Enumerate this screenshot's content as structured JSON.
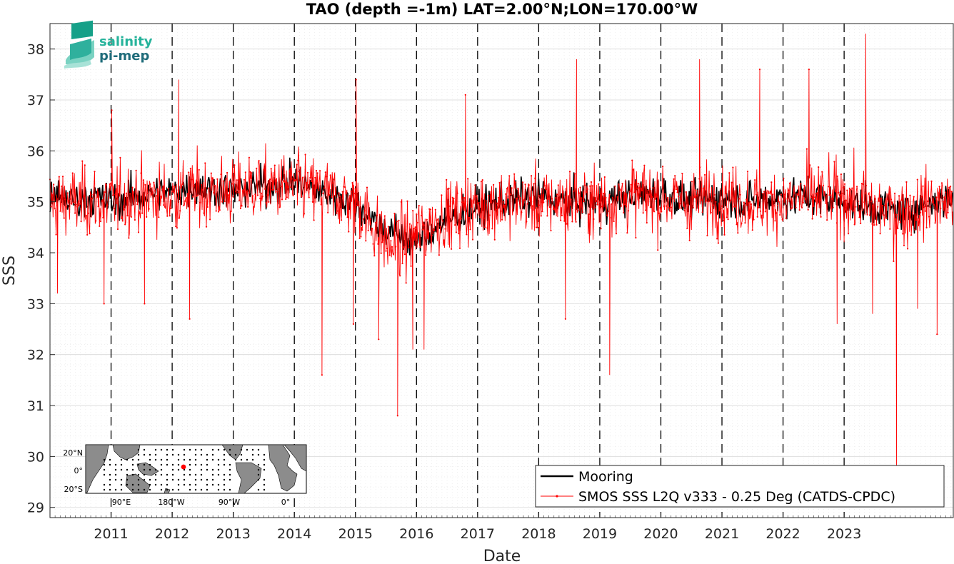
{
  "chart_data": {
    "type": "line",
    "title": "TAO (depth =-1m) LAT=2.00°N;LON=170.00°W",
    "xlabel": "Date",
    "ylabel": "SSS",
    "xlim": [
      "2010-01-01",
      "2024-10-15"
    ],
    "ylim": [
      28.8,
      38.5
    ],
    "x_ticks": [
      "2011",
      "2012",
      "2013",
      "2014",
      "2015",
      "2016",
      "2017",
      "2018",
      "2019",
      "2020",
      "2021",
      "2022",
      "2023"
    ],
    "y_ticks": [
      29,
      30,
      31,
      32,
      33,
      34,
      35,
      36,
      37,
      38
    ],
    "grid": true,
    "year_separators": true,
    "legend_position": "bottom-right",
    "series": [
      {
        "name": "Mooring",
        "color": "#000000",
        "x": [
          "2010-01-01",
          "2010-03-01",
          "2010-06-01",
          "2010-09-01",
          "2011-01-01",
          "2011-06-01",
          "2012-01-01",
          "2012-06-01",
          "2013-01-01",
          "2013-06-01",
          "2014-01-01",
          "2014-06-01",
          "2015-01-01",
          "2015-06-01",
          "2016-01-01",
          "2016-06-01",
          "2017-01-01",
          "2017-06-01",
          "2018-01-01",
          "2018-06-01",
          "2019-01-01",
          "2019-06-01",
          "2020-01-01",
          "2020-06-01",
          "2021-01-01",
          "2021-06-01",
          "2022-01-01",
          "2022-06-01",
          "2023-01-01",
          "2023-06-01",
          "2024-01-01",
          "2024-06-01",
          "2024-10-01"
        ],
        "values": [
          35.0,
          35.1,
          35.0,
          35.1,
          35.0,
          35.1,
          35.2,
          35.3,
          35.2,
          35.3,
          35.4,
          35.2,
          35.0,
          34.5,
          34.2,
          34.6,
          34.9,
          35.0,
          35.1,
          35.0,
          35.0,
          35.1,
          35.2,
          35.0,
          35.1,
          35.0,
          35.1,
          35.1,
          35.0,
          34.9,
          34.8,
          35.0,
          35.1
        ]
      },
      {
        "name": "SMOS SSS L2Q v333 - 0.25 Deg (CATDS-CPDC)",
        "color": "#ff0000",
        "baseline": {
          "x": [
            "2010-01-01",
            "2010-06-01",
            "2011-01-01",
            "2011-06-01",
            "2012-01-01",
            "2012-06-01",
            "2013-01-01",
            "2013-06-01",
            "2014-01-01",
            "2014-06-01",
            "2015-01-01",
            "2015-04-01",
            "2015-08-01",
            "2015-12-01",
            "2016-06-01",
            "2017-01-01",
            "2017-06-01",
            "2018-01-01",
            "2018-06-01",
            "2019-01-01",
            "2019-06-01",
            "2020-01-01",
            "2020-06-01",
            "2021-01-01",
            "2021-06-01",
            "2022-01-01",
            "2022-06-01",
            "2023-01-01",
            "2023-06-01",
            "2024-01-01",
            "2024-06-01",
            "2024-10-15"
          ],
          "values": [
            35.0,
            35.0,
            35.0,
            35.1,
            35.1,
            35.2,
            35.2,
            35.3,
            35.3,
            35.2,
            35.0,
            34.6,
            34.1,
            34.3,
            34.7,
            34.9,
            35.0,
            35.0,
            35.0,
            35.0,
            35.1,
            35.1,
            35.0,
            35.1,
            35.0,
            35.0,
            35.1,
            35.1,
            34.9,
            34.8,
            35.0,
            35.0
          ]
        },
        "noise_std": 0.55,
        "extremes": [
          {
            "x": "2010-02-15",
            "value": 33.2
          },
          {
            "x": "2010-11-20",
            "value": 33.0
          },
          {
            "x": "2011-01-05",
            "value": 36.8
          },
          {
            "x": "2011-07-20",
            "value": 33.0
          },
          {
            "x": "2012-02-10",
            "value": 37.4
          },
          {
            "x": "2012-04-15",
            "value": 32.7
          },
          {
            "x": "2014-06-15",
            "value": 31.6
          },
          {
            "x": "2014-12-20",
            "value": 32.6
          },
          {
            "x": "2015-01-05",
            "value": 37.4
          },
          {
            "x": "2015-05-20",
            "value": 32.3
          },
          {
            "x": "2015-09-10",
            "value": 30.8
          },
          {
            "x": "2015-12-10",
            "value": 32.1
          },
          {
            "x": "2016-02-15",
            "value": 32.1
          },
          {
            "x": "2016-10-20",
            "value": 37.1
          },
          {
            "x": "2018-06-10",
            "value": 32.7
          },
          {
            "x": "2018-08-15",
            "value": 37.8
          },
          {
            "x": "2019-03-01",
            "value": 31.6
          },
          {
            "x": "2020-08-20",
            "value": 37.8
          },
          {
            "x": "2021-08-15",
            "value": 37.6
          },
          {
            "x": "2022-06-05",
            "value": 37.6
          },
          {
            "x": "2022-11-20",
            "value": 32.6
          },
          {
            "x": "2023-05-10",
            "value": 38.3
          },
          {
            "x": "2023-06-20",
            "value": 32.8
          },
          {
            "x": "2023-11-10",
            "value": 29.8
          },
          {
            "x": "2024-03-15",
            "value": 32.9
          },
          {
            "x": "2024-07-10",
            "value": 32.4
          }
        ]
      }
    ]
  },
  "logo": {
    "line1": "salinity",
    "line2": "pi-mep"
  },
  "inset_map": {
    "lat_labels": [
      "20°N",
      "0°",
      "20°S"
    ],
    "lon_labels": [
      "90°E",
      "180°W",
      "90°W",
      "0°"
    ],
    "colors": {
      "land": "#8c8c8c",
      "ocean": "#ffffff",
      "station": "#000000",
      "selected": "#ff0000"
    }
  },
  "legend": {
    "items": [
      {
        "label": "Mooring",
        "color": "#000000"
      },
      {
        "label": "SMOS SSS L2Q v333 - 0.25 Deg (CATDS-CPDC)",
        "color": "#ff0000"
      }
    ]
  }
}
